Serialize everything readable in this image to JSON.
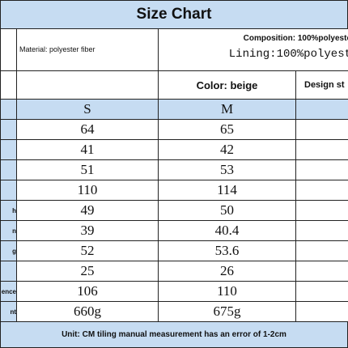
{
  "header": {
    "title": "Size Chart"
  },
  "info": {
    "material": "Material: polyester fiber",
    "composition": "Composition: 100%polyeste",
    "lining": "Lining:100%polyest",
    "color": "Color: beige",
    "design": "Design st"
  },
  "table": {
    "columns": [
      "S",
      "M"
    ],
    "rows": [
      {
        "cells": [
          "64",
          "65"
        ]
      },
      {
        "cells": [
          "41",
          "42"
        ]
      },
      {
        "cells": [
          "51",
          "53"
        ]
      },
      {
        "cells": [
          "110",
          "114"
        ]
      },
      {
        "label": "h",
        "cells": [
          "49",
          "50"
        ]
      },
      {
        "label": "n",
        "cells": [
          "39",
          "40.4"
        ]
      },
      {
        "label": "g",
        "cells": [
          "52",
          "53.6"
        ]
      },
      {
        "cells": [
          "25",
          "26"
        ]
      },
      {
        "label": "ence",
        "cells": [
          "106",
          "110"
        ]
      },
      {
        "label": "nt",
        "cells": [
          "660g",
          "675g"
        ]
      }
    ]
  },
  "footer": {
    "note": "Unit: CM tiling manual measurement has an error of 1-2cm"
  }
}
